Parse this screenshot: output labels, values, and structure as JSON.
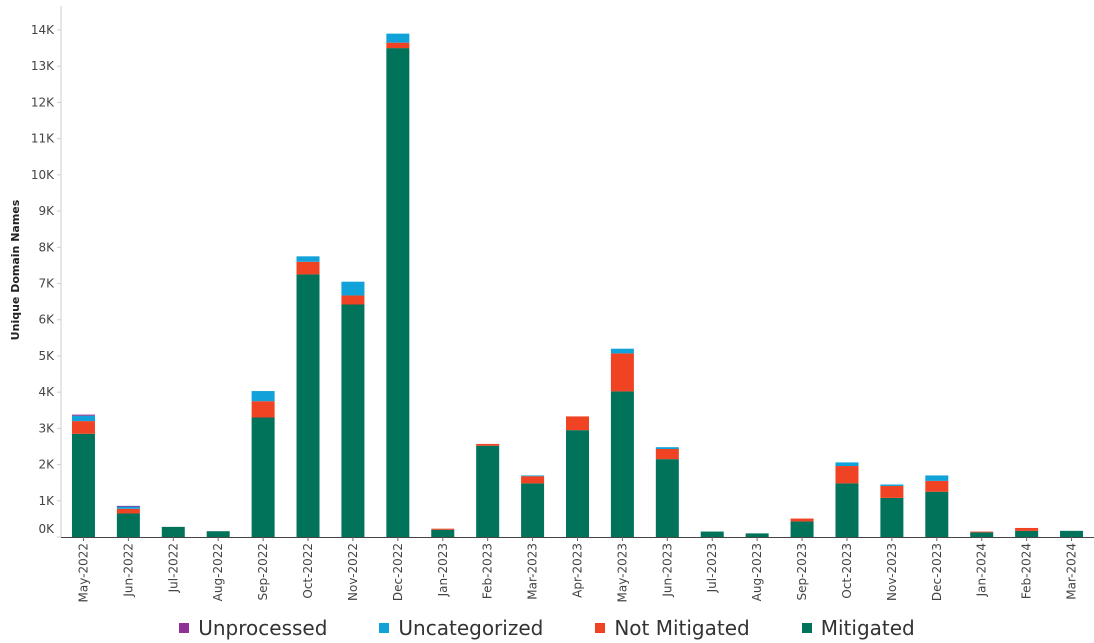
{
  "chart_data": {
    "type": "bar",
    "stacked": true,
    "title": "",
    "xlabel": "",
    "ylabel": "Unique Domain Names",
    "ylim": [
      0,
      14500
    ],
    "yticks": [
      0,
      1000,
      2000,
      3000,
      4000,
      5000,
      6000,
      7000,
      8000,
      9000,
      10000,
      11000,
      12000,
      13000,
      14000
    ],
    "ytick_labels": [
      "0K",
      "1K",
      "2K",
      "3K",
      "4K",
      "5K",
      "6K",
      "7K",
      "8K",
      "9K",
      "10K",
      "11K",
      "12K",
      "13K",
      "14K"
    ],
    "categories": [
      "May-2022",
      "Jun-2022",
      "Jul-2022",
      "Aug-2022",
      "Sep-2022",
      "Oct-2022",
      "Nov-2022",
      "Dec-2022",
      "Jan-2023",
      "Feb-2023",
      "Mar-2023",
      "Apr-2023",
      "May-2023",
      "Jun-2023",
      "Jul-2023",
      "Aug-2023",
      "Sep-2023",
      "Oct-2023",
      "Nov-2023",
      "Dec-2023",
      "Jan-2024",
      "Feb-2024",
      "Mar-2024"
    ],
    "series": [
      {
        "name": "Mitigated",
        "color": "#00735a",
        "values": [
          2850,
          650,
          280,
          160,
          3300,
          7250,
          6420,
          13500,
          200,
          2520,
          1480,
          2950,
          4020,
          2150,
          150,
          100,
          430,
          1480,
          1080,
          1250,
          130,
          170,
          170
        ]
      },
      {
        "name": "Not Mitigated",
        "color": "#f04323",
        "values": [
          350,
          130,
          0,
          0,
          450,
          350,
          250,
          150,
          30,
          50,
          200,
          380,
          1050,
          280,
          0,
          0,
          80,
          480,
          330,
          300,
          20,
          80,
          0
        ]
      },
      {
        "name": "Uncategorized",
        "color": "#10a2d8",
        "values": [
          150,
          70,
          0,
          0,
          280,
          150,
          380,
          250,
          0,
          0,
          20,
          0,
          130,
          50,
          0,
          0,
          0,
          100,
          40,
          150,
          0,
          0,
          0
        ]
      },
      {
        "name": "Unprocessed",
        "color": "#8e3396",
        "values": [
          30,
          10,
          0,
          0,
          0,
          0,
          0,
          0,
          0,
          0,
          0,
          0,
          0,
          0,
          0,
          0,
          0,
          0,
          0,
          0,
          0,
          0,
          0
        ]
      }
    ],
    "legend_position": "bottom",
    "legend_order": [
      "Unprocessed",
      "Uncategorized",
      "Not Mitigated",
      "Mitigated"
    ],
    "grid": false
  }
}
